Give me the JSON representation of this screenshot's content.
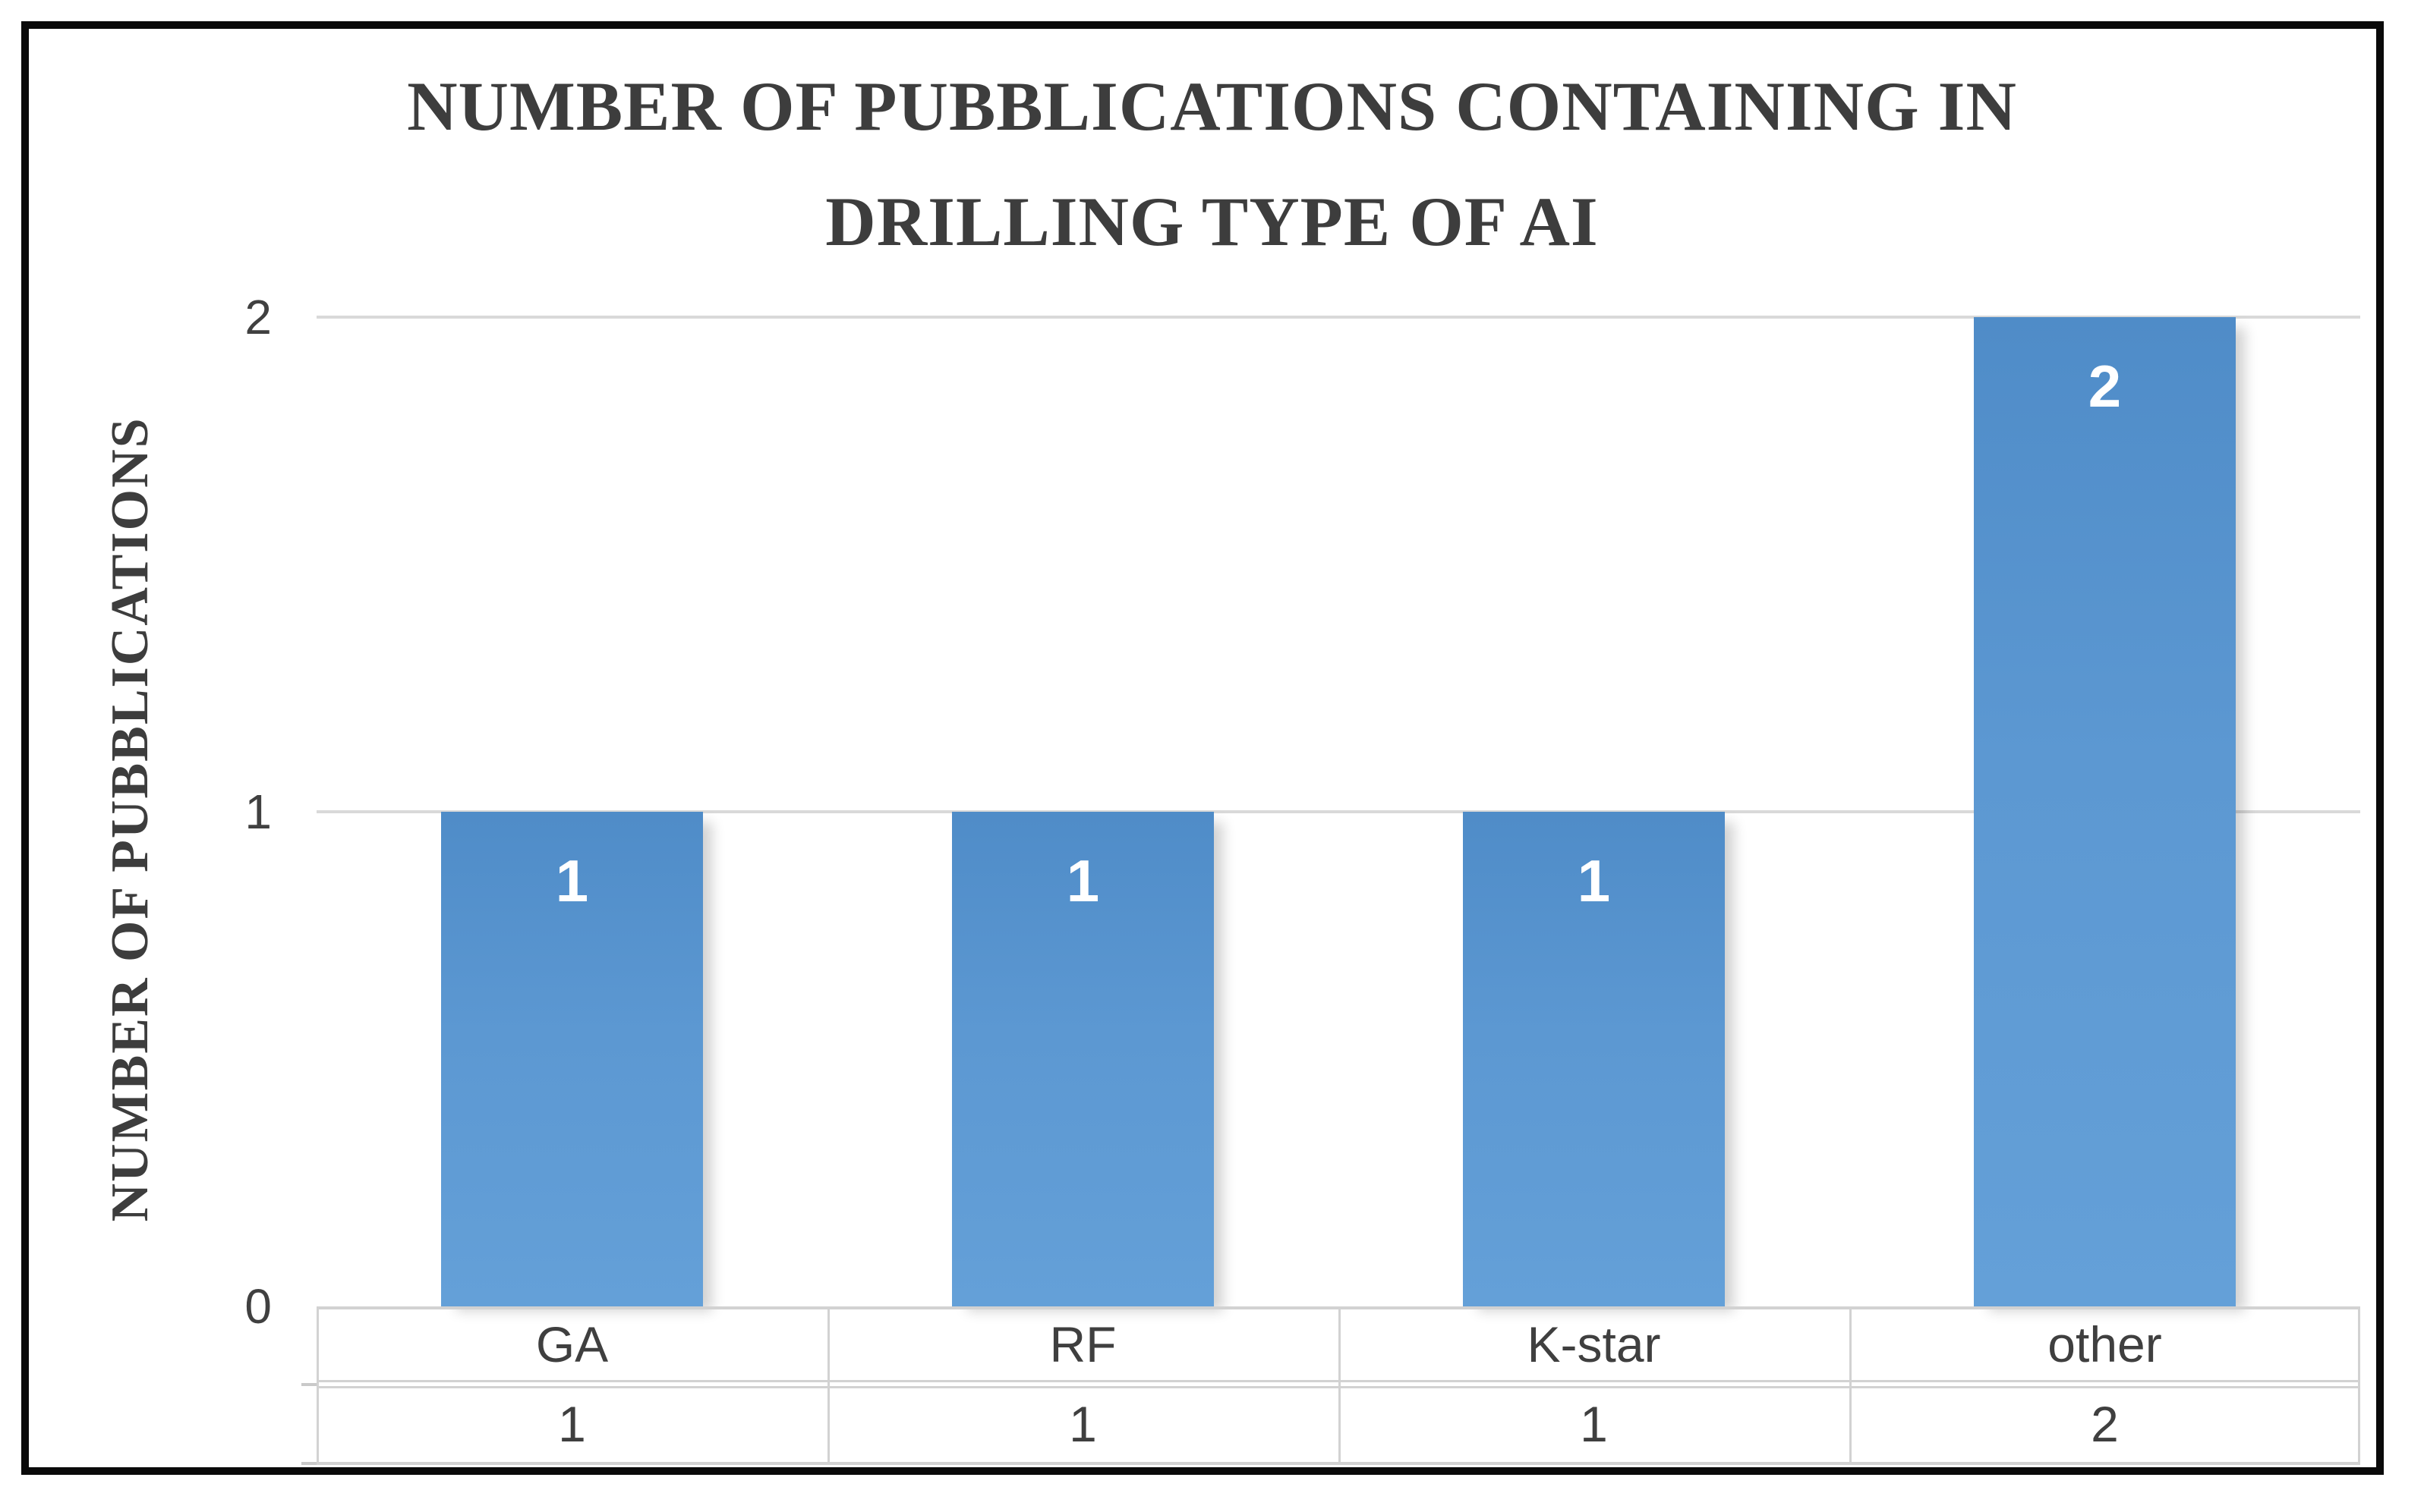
{
  "figure": {
    "background": "#ffffff",
    "frame_border_color": "#0a0a0a"
  },
  "chart_data": {
    "type": "bar",
    "title": "NUMBER OF PUBBLICATIONS CONTAINING IN DRILLING TYPE OF AI",
    "title_lines": [
      "NUMBER OF PUBBLICATIONS CONTAINING IN",
      "DRILLING TYPE OF AI"
    ],
    "ylabel": "NUMBER OF PUBBLICATIONS",
    "xlabel": "",
    "categories": [
      "GA",
      "RF",
      "K-star",
      "other"
    ],
    "values": [
      1,
      1,
      1,
      2
    ],
    "bar_labels": [
      "1",
      "1",
      "1",
      "2"
    ],
    "yticks": [
      "0",
      "1",
      "2"
    ],
    "ylim": [
      0,
      2
    ],
    "grid": true,
    "legend_position": "none",
    "data_table_rows": [
      [
        "GA",
        "RF",
        "K-star",
        "other"
      ],
      [
        "1",
        "1",
        "1",
        "2"
      ]
    ],
    "colors": {
      "bar": "#5b9bd5",
      "bar_gradient_top": "#4f8cc8",
      "bar_gradient_bottom": "#64a0d8",
      "bar_label_text": "#ffffff",
      "gridline": "#d9d9d9",
      "table_border": "#d2d2d2",
      "axis_text": "#404040",
      "title_text": "#3d3d3d"
    }
  }
}
